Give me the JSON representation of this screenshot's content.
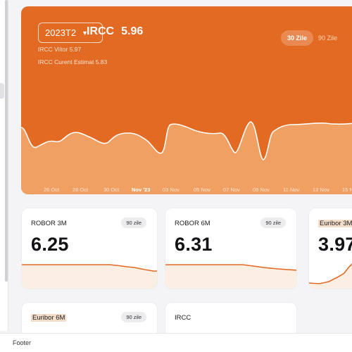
{
  "hero": {
    "period": "2023T2",
    "title": "IRCC",
    "value": "5.96",
    "future": "IRCC Viitor 5.97",
    "current": "IRCC Curent Estimat 5.83",
    "range_active": "30 Zile",
    "range_inactive": "90 Zile",
    "x_labels": [
      "26 Oct",
      "28 Oct",
      "30 Oct",
      "Nov '23",
      "03 Nov",
      "05 Nov",
      "07 Nov",
      "09 Nov",
      "11 Nov",
      "13 Nov",
      "15 N"
    ]
  },
  "cards": [
    {
      "title": "ROBOR 3M",
      "badge": "90 zile",
      "value": "6.25"
    },
    {
      "title": "ROBOR 6M",
      "badge": "90 zile",
      "value": "6.31"
    },
    {
      "title": "Euribor 3M",
      "badge": "",
      "value": "3.97"
    },
    {
      "title": "Euribor 6M",
      "badge": "90 zile",
      "value": ""
    },
    {
      "title": "IRCC",
      "badge": "",
      "value": ""
    }
  ],
  "footer": {
    "label": "Footer"
  },
  "colors": {
    "accent": "#e36a23",
    "chart_fill": "#f0a062",
    "card_line": "#e06a24"
  }
}
